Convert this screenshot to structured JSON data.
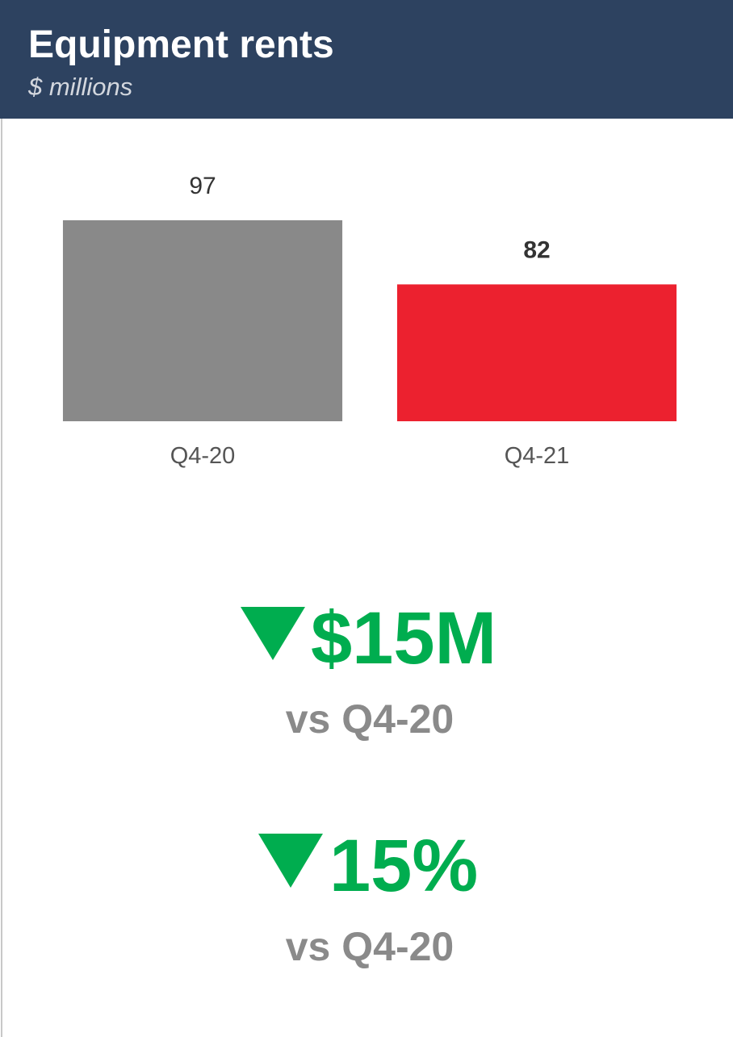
{
  "chart_data": {
    "type": "bar",
    "title": "Equipment rents",
    "subtitle": "$ millions",
    "categories": [
      "Q4-20",
      "Q4-21"
    ],
    "values": [
      97,
      82
    ],
    "colors": [
      "#898989",
      "#ec212f"
    ],
    "ylim": [
      50,
      100
    ]
  },
  "kpis": [
    {
      "value": "$15M",
      "label": "vs Q4-20"
    },
    {
      "value": "15%",
      "label": "vs Q4-20"
    }
  ]
}
